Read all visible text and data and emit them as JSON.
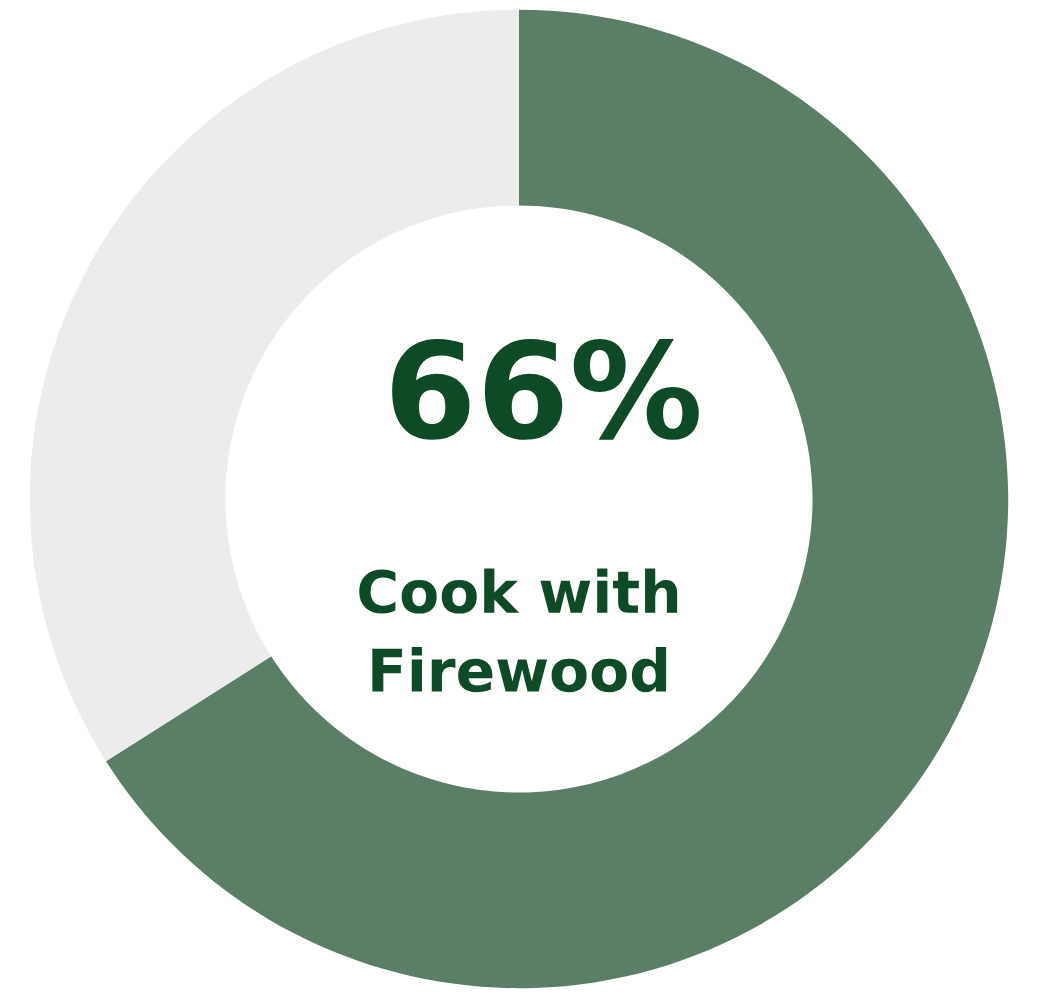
{
  "chart_data": {
    "type": "donut",
    "categories": [
      "Cook with Firewood",
      null
    ],
    "values": [
      66,
      34
    ],
    "colors": [
      "#5a7f66",
      "#ececec"
    ],
    "value_labels": [
      "66%",
      null
    ]
  }
}
